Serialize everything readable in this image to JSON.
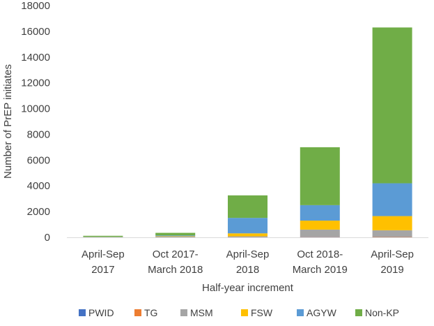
{
  "chart_data": {
    "type": "bar",
    "stacked": true,
    "title": "",
    "xlabel": "Half-year increment",
    "ylabel": "Number of PrEP initiates",
    "ylim": [
      0,
      18000
    ],
    "yticks": [
      0,
      2000,
      4000,
      6000,
      8000,
      10000,
      12000,
      14000,
      16000,
      18000
    ],
    "grid": false,
    "legend_position": "bottom",
    "categories": [
      [
        "April-Sep",
        "2017"
      ],
      [
        "Oct 2017-",
        "March 2018"
      ],
      [
        "April-Sep",
        "2018"
      ],
      [
        "Oct 2018-",
        "March 2019"
      ],
      [
        "April-Sep",
        "2019"
      ]
    ],
    "series": [
      {
        "name": "PWID",
        "color": "#4472C4",
        "values": [
          0,
          0,
          10,
          20,
          20
        ]
      },
      {
        "name": "TG",
        "color": "#ED7D31",
        "values": [
          0,
          0,
          10,
          20,
          30
        ]
      },
      {
        "name": "MSM",
        "color": "#A5A5A5",
        "values": [
          10,
          50,
          60,
          560,
          500
        ]
      },
      {
        "name": "FSW",
        "color": "#FFC000",
        "values": [
          10,
          40,
          230,
          700,
          1100
        ]
      },
      {
        "name": "AGYW",
        "color": "#5B9BD5",
        "values": [
          20,
          60,
          1200,
          1200,
          2550
        ]
      },
      {
        "name": "Non-KP",
        "color": "#70AD47",
        "values": [
          80,
          200,
          1750,
          4500,
          12100
        ]
      }
    ]
  }
}
